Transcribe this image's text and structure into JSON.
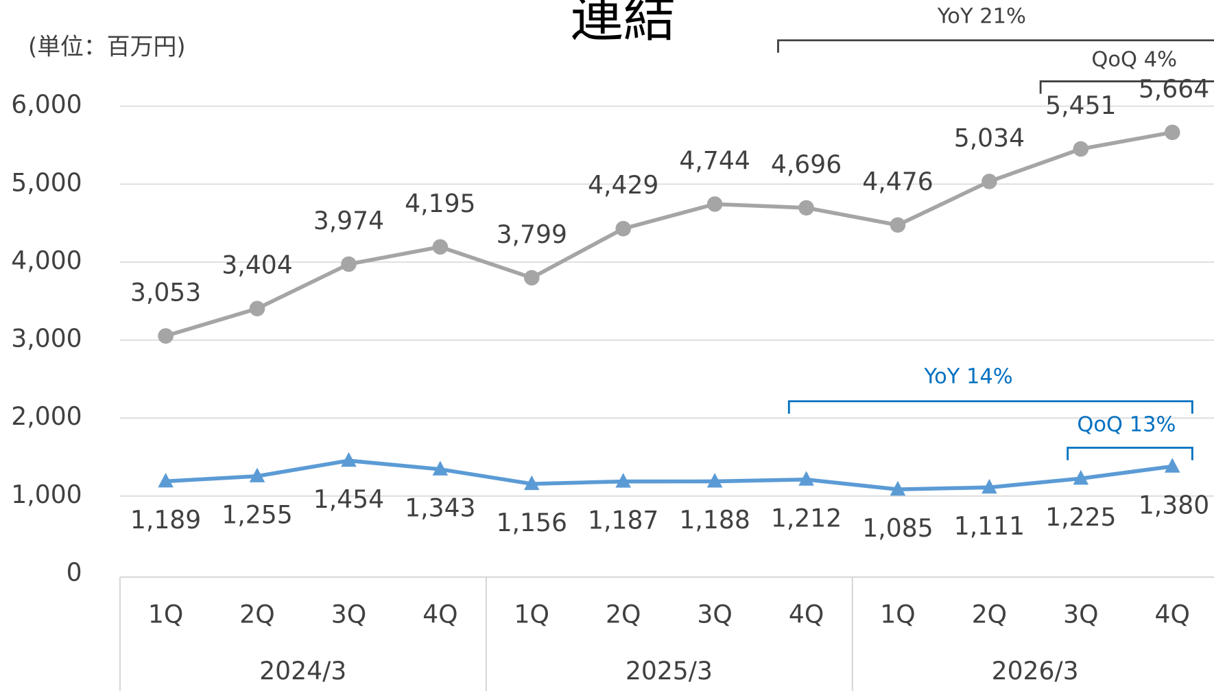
{
  "chart_data": {
    "type": "line",
    "title": "連結",
    "unit_label": "(単位：百万円)",
    "categories": [
      "1Q",
      "2Q",
      "3Q",
      "4Q",
      "1Q",
      "2Q",
      "3Q",
      "4Q",
      "1Q",
      "2Q",
      "3Q",
      "4Q"
    ],
    "groups": [
      "2024/3",
      "2025/3",
      "2026/3"
    ],
    "series": [
      {
        "color": "#a5a5a5",
        "marker": "circle",
        "values": [
          3053,
          3404,
          3974,
          4195,
          3799,
          4429,
          4744,
          4696,
          4476,
          5034,
          5451,
          5664
        ],
        "value_labels": [
          "3,053",
          "3,404",
          "3,974",
          "4,195",
          "3,799",
          "4,429",
          "4,744",
          "4,696",
          "4,476",
          "5,034",
          "5,451",
          "5,664"
        ]
      },
      {
        "color": "#5b9bd5",
        "marker": "triangle",
        "values": [
          1189,
          1255,
          1454,
          1343,
          1156,
          1187,
          1188,
          1212,
          1085,
          1111,
          1225,
          1380
        ],
        "value_labels": [
          "1,189",
          "1,255",
          "1,454",
          "1,343",
          "1,156",
          "1,187",
          "1,188",
          "1,212",
          "1,085",
          "1,111",
          "1,225",
          "1,380"
        ]
      }
    ],
    "ylim": [
      0,
      6000
    ],
    "yticks": [
      0,
      {
        "value": 1000,
        "label": "1,000"
      },
      {
        "value": 2000,
        "label": "2,000"
      },
      {
        "value": 3000,
        "label": "3,000"
      },
      {
        "value": 4000,
        "label": "4,000"
      },
      {
        "value": 5000,
        "label": "5,000"
      },
      {
        "value": 6000,
        "label": "6,000"
      }
    ],
    "grid": true,
    "annotations": [
      {
        "text": "YoY 21%",
        "color": "#404040"
      },
      {
        "text": "QoQ 4%",
        "color": "#404040"
      },
      {
        "text": "YoY 14%",
        "color": "#0070c0"
      },
      {
        "text": "QoQ 13%",
        "color": "#0070c0"
      }
    ]
  }
}
